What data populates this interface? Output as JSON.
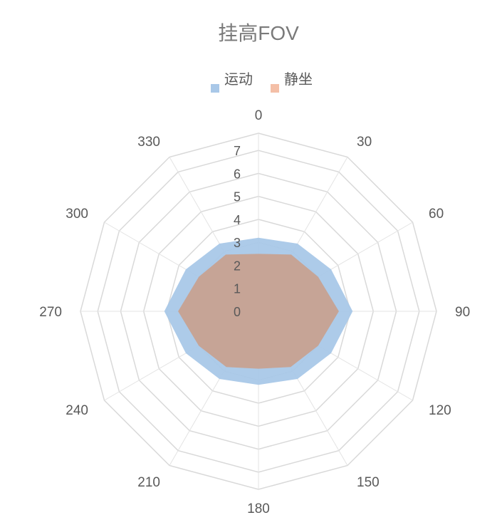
{
  "chart_data": {
    "type": "radar",
    "title": "挂高FOV",
    "categories": [
      "0",
      "30",
      "60",
      "90",
      "120",
      "150",
      "180",
      "210",
      "240",
      "270",
      "300",
      "330"
    ],
    "radial_ticks": [
      "0",
      "1",
      "2",
      "3",
      "4",
      "5",
      "6",
      "7"
    ],
    "rmax": 7.75,
    "series": [
      {
        "name": "运动",
        "color": "#a9c8e8",
        "values": [
          3.2,
          3.4,
          3.65,
          4.1,
          3.65,
          3.4,
          3.2,
          3.4,
          3.65,
          4.1,
          3.65,
          3.4
        ]
      },
      {
        "name": "静坐",
        "color": "#c9a08d",
        "values": [
          2.5,
          2.85,
          3.0,
          3.5,
          3.0,
          2.8,
          2.5,
          2.8,
          3.0,
          3.5,
          3.0,
          2.85
        ]
      }
    ],
    "legend_position": "top",
    "grid": true
  }
}
